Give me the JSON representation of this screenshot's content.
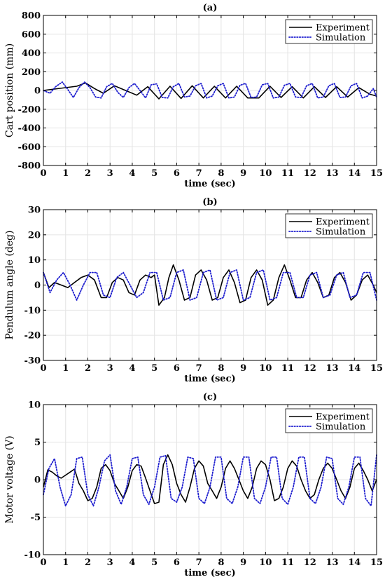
{
  "chart_data": [
    {
      "type": "line",
      "title": "(a)",
      "xlabel": "time (sec)",
      "ylabel": "Cart position (mm)",
      "xlim": [
        0,
        15
      ],
      "ylim": [
        -800,
        800
      ],
      "xticks": [
        "0",
        "1",
        "2",
        "3",
        "4",
        "5",
        "6",
        "7",
        "8",
        "9",
        "10",
        "11",
        "12",
        "13",
        "14",
        "15"
      ],
      "yticks": [
        "-800",
        "-600",
        "-400",
        "-200",
        "0",
        "200",
        "400",
        "600",
        "800"
      ],
      "grid": true,
      "legend": "top-right",
      "series": [
        {
          "name": "Experiment",
          "color": "#000000",
          "style": "solid",
          "x": [
            0,
            0.5,
            1,
            1.5,
            1.9,
            2.3,
            2.7,
            3.2,
            3.7,
            4.2,
            4.7,
            5.2,
            5.7,
            6.2,
            6.7,
            7.2,
            7.7,
            8.2,
            8.7,
            9.2,
            9.7,
            10.2,
            10.7,
            11.2,
            11.7,
            12.2,
            12.7,
            13.2,
            13.7,
            14.2,
            14.7,
            15
          ],
          "y": [
            0,
            15,
            30,
            45,
            80,
            20,
            -30,
            50,
            0,
            -50,
            40,
            -90,
            45,
            -85,
            50,
            -80,
            45,
            -80,
            45,
            -80,
            -80,
            45,
            -75,
            40,
            -80,
            40,
            -75,
            40,
            -70,
            30,
            -40,
            -60
          ]
        },
        {
          "name": "Simulation",
          "color": "#1f1fcf",
          "style": "dotted",
          "x": [
            0,
            0.3,
            0.55,
            0.85,
            1.1,
            1.35,
            1.6,
            1.85,
            2.1,
            2.35,
            2.6,
            2.85,
            3.1,
            3.35,
            3.6,
            3.85,
            4.1,
            4.35,
            4.6,
            4.85,
            5.1,
            5.35,
            5.6,
            5.85,
            6.1,
            6.35,
            6.6,
            6.85,
            7.1,
            7.35,
            7.6,
            7.85,
            8.1,
            8.35,
            8.6,
            8.85,
            9.1,
            9.35,
            9.6,
            9.85,
            10.1,
            10.35,
            10.6,
            10.85,
            11.1,
            11.35,
            11.6,
            11.85,
            12.1,
            12.35,
            12.6,
            12.85,
            13.1,
            13.35,
            13.6,
            13.85,
            14.1,
            14.35,
            14.6,
            14.85,
            15
          ],
          "y": [
            0,
            -30,
            40,
            90,
            10,
            -75,
            30,
            90,
            30,
            -70,
            -80,
            40,
            75,
            -20,
            -75,
            30,
            75,
            0,
            -80,
            60,
            70,
            -75,
            -80,
            40,
            75,
            -70,
            -60,
            50,
            75,
            -80,
            -60,
            50,
            75,
            -80,
            -70,
            55,
            75,
            -75,
            -70,
            60,
            75,
            -80,
            -70,
            55,
            75,
            -70,
            -75,
            50,
            75,
            -80,
            -70,
            50,
            75,
            -75,
            -70,
            50,
            75,
            -80,
            -60,
            20,
            -70
          ]
        }
      ]
    },
    {
      "type": "line",
      "title": "(b)",
      "xlabel": "time (sec)",
      "ylabel": "Pendulum angle (deg)",
      "xlim": [
        0,
        15
      ],
      "ylim": [
        -30,
        30
      ],
      "xticks": [
        "0",
        "1",
        "2",
        "3",
        "4",
        "5",
        "6",
        "7",
        "8",
        "9",
        "10",
        "11",
        "12",
        "13",
        "14",
        "15"
      ],
      "yticks": [
        "-30",
        "-20",
        "-10",
        "0",
        "10",
        "20",
        "30"
      ],
      "grid": true,
      "legend": "top-right",
      "series": [
        {
          "name": "Experiment",
          "color": "#000000",
          "style": "solid",
          "x": [
            0,
            0.25,
            0.5,
            0.8,
            1.1,
            1.4,
            1.7,
            2.0,
            2.3,
            2.6,
            2.85,
            3.1,
            3.35,
            3.6,
            3.85,
            4.1,
            4.35,
            4.6,
            4.85,
            5.0,
            5.2,
            5.45,
            5.65,
            5.85,
            6.1,
            6.35,
            6.6,
            6.85,
            7.1,
            7.35,
            7.6,
            7.85,
            8.1,
            8.35,
            8.6,
            8.85,
            9.1,
            9.35,
            9.6,
            9.85,
            10.1,
            10.35,
            10.6,
            10.85,
            11.1,
            11.35,
            11.6,
            11.85,
            12.1,
            12.35,
            12.6,
            12.85,
            13.1,
            13.35,
            13.6,
            13.85,
            14.1,
            14.35,
            14.6,
            14.85,
            15
          ],
          "y": [
            5,
            -1,
            1,
            0,
            -1,
            1,
            3,
            4,
            2,
            -5,
            -5,
            1,
            3,
            2,
            -3,
            -4,
            2,
            4,
            3,
            4,
            -8,
            -5,
            3,
            8,
            2,
            -6,
            -5,
            4,
            6,
            2,
            -6,
            -5,
            3,
            6,
            1,
            -7,
            -6,
            3,
            6,
            2,
            -8,
            -6,
            3,
            8,
            2,
            -5,
            -5,
            2,
            5,
            1,
            -5,
            -4,
            3,
            5,
            1,
            -6,
            -4,
            2,
            4,
            0,
            -3
          ]
        },
        {
          "name": "Simulation",
          "color": "#1f1fcf",
          "style": "dotted",
          "x": [
            0,
            0.3,
            0.6,
            0.9,
            1.2,
            1.5,
            1.8,
            2.1,
            2.4,
            2.7,
            3.0,
            3.3,
            3.6,
            3.9,
            4.2,
            4.5,
            4.8,
            5.1,
            5.4,
            5.7,
            6.0,
            6.3,
            6.6,
            6.9,
            7.2,
            7.5,
            7.8,
            8.1,
            8.4,
            8.7,
            9.0,
            9.3,
            9.6,
            9.9,
            10.2,
            10.5,
            10.8,
            11.1,
            11.4,
            11.7,
            12.0,
            12.3,
            12.6,
            12.9,
            13.2,
            13.5,
            13.8,
            14.1,
            14.4,
            14.7,
            15
          ],
          "y": [
            5,
            -3,
            2,
            5,
            0,
            -6,
            0,
            5,
            5,
            -4,
            -5,
            3,
            5,
            0,
            -5,
            -3,
            5,
            5,
            -6,
            -5,
            5,
            6,
            -6,
            -5,
            5,
            6,
            -6,
            -5,
            5,
            6,
            -6,
            -5,
            5,
            6,
            -6,
            -5,
            5,
            5,
            -5,
            -5,
            4,
            5,
            -5,
            -4,
            4,
            5,
            -5,
            -4,
            5,
            5,
            -6
          ]
        }
      ]
    },
    {
      "type": "line",
      "title": "(c)",
      "xlabel": "time (sec)",
      "ylabel": "Motor voltage (V)",
      "xlim": [
        0,
        15
      ],
      "ylim": [
        -10,
        10
      ],
      "xticks": [
        "0",
        "1",
        "2",
        "3",
        "4",
        "5",
        "6",
        "7",
        "8",
        "9",
        "10",
        "11",
        "12",
        "13",
        "14",
        "15"
      ],
      "yticks": [
        "-10",
        "-5",
        "0",
        "5",
        "10"
      ],
      "grid": true,
      "legend": "top-right",
      "series": [
        {
          "name": "Experiment",
          "color": "#000000",
          "style": "solid",
          "x": [
            0,
            0.2,
            0.4,
            0.6,
            0.8,
            1.0,
            1.2,
            1.4,
            1.6,
            1.8,
            2.0,
            2.2,
            2.4,
            2.6,
            2.8,
            3.0,
            3.2,
            3.4,
            3.6,
            3.8,
            4.0,
            4.2,
            4.4,
            4.6,
            4.8,
            5.0,
            5.2,
            5.4,
            5.6,
            5.8,
            6.0,
            6.2,
            6.4,
            6.6,
            6.8,
            7.0,
            7.2,
            7.4,
            7.6,
            7.8,
            8.0,
            8.2,
            8.4,
            8.6,
            8.8,
            9.0,
            9.2,
            9.4,
            9.6,
            9.8,
            10.0,
            10.2,
            10.4,
            10.6,
            10.8,
            11.0,
            11.2,
            11.4,
            11.6,
            11.8,
            12.0,
            12.2,
            12.4,
            12.6,
            12.8,
            13.0,
            13.2,
            13.4,
            13.6,
            13.8,
            14.0,
            14.2,
            14.4,
            14.6,
            14.8,
            15
          ],
          "y": [
            -1,
            1.3,
            1,
            0.5,
            0.2,
            0.6,
            1,
            1.4,
            -0.5,
            -1.5,
            -2.8,
            -2.5,
            -1,
            1.5,
            2,
            1.2,
            -0.5,
            -1.5,
            -2.5,
            -1,
            1.2,
            2,
            1.8,
            0.2,
            -1.5,
            -3.2,
            -3,
            2,
            3.3,
            2,
            -0.5,
            -2,
            -3,
            -1,
            1.5,
            2.5,
            1.8,
            -0.5,
            -1.5,
            -2.5,
            -1,
            1.5,
            2.5,
            1.5,
            0,
            -1.5,
            -2.5,
            -1,
            1.5,
            2.5,
            2,
            0,
            -2.8,
            -2.5,
            -1,
            1.5,
            2.5,
            1.8,
            0,
            -1.5,
            -2.5,
            -2,
            0,
            1.5,
            2.2,
            1.5,
            0,
            -1.5,
            -2.5,
            -1,
            1.5,
            2.2,
            1.2,
            0,
            -1.5,
            0
          ]
        },
        {
          "name": "Simulation",
          "color": "#1f1fcf",
          "style": "dotted",
          "x": [
            0,
            0.25,
            0.5,
            0.75,
            1.0,
            1.25,
            1.5,
            1.75,
            2.0,
            2.25,
            2.5,
            2.75,
            3.0,
            3.25,
            3.5,
            3.75,
            4.0,
            4.25,
            4.5,
            4.75,
            5.0,
            5.25,
            5.5,
            5.75,
            6.0,
            6.25,
            6.5,
            6.75,
            7.0,
            7.25,
            7.5,
            7.75,
            8.0,
            8.25,
            8.5,
            8.75,
            9.0,
            9.25,
            9.5,
            9.75,
            10.0,
            10.25,
            10.5,
            10.75,
            11.0,
            11.25,
            11.5,
            11.75,
            12.0,
            12.25,
            12.5,
            12.75,
            13.0,
            13.25,
            13.5,
            13.75,
            14.0,
            14.25,
            14.5,
            14.75,
            15
          ],
          "y": [
            -2,
            1.5,
            2.8,
            -1,
            -3.5,
            -2,
            2.8,
            3,
            -2,
            -3.5,
            -1,
            2.5,
            3.3,
            -1.5,
            -3.3,
            -1,
            2.8,
            3,
            -2,
            -3.3,
            -1,
            3,
            3.2,
            -2.5,
            -3,
            -1,
            3,
            2.8,
            -2.5,
            -3.2,
            -1,
            3,
            3,
            -2.5,
            -3.2,
            -1,
            3,
            3,
            -2.5,
            -3.2,
            -1,
            3,
            3,
            -2.5,
            -3.3,
            -1,
            3,
            3,
            -2.5,
            -3.2,
            -1,
            3,
            2.8,
            -2.5,
            -3.3,
            -1,
            3,
            3,
            -2.5,
            -3.5,
            3.3
          ]
        }
      ]
    }
  ]
}
